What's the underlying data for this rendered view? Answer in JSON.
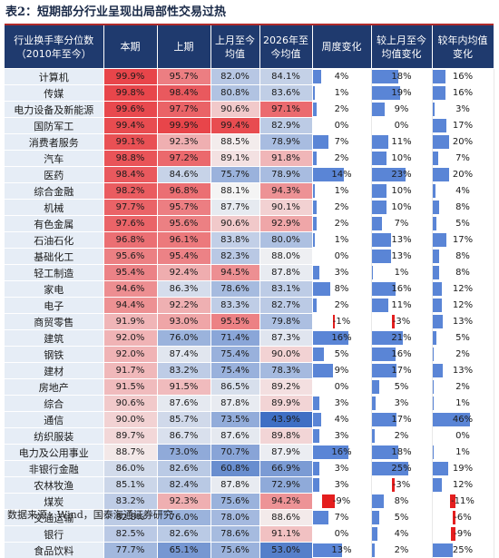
{
  "title": "表2：短期部分行业呈现出局部性交易过热",
  "source": "数据来源：Wind，国泰海通证券研究",
  "headers": [
    "行业换手率分位数（2010年至今）",
    "本期",
    "上期",
    "上月至今均值",
    "2026年至今均值",
    "周度变化",
    "较上月至今均值变化",
    "较年内均值变化"
  ],
  "colors": {
    "high": "#e8454a",
    "low": "#3f6fc4",
    "mid": "#f4f4f4",
    "pos_bar": "#5a85d6",
    "neg_bar": "#e41e1e"
  },
  "rows": [
    {
      "name": "计算机",
      "cur": "99.9%",
      "prev": "95.7%",
      "mon": "82.0%",
      "ytd": "84.1%",
      "wk": "4%",
      "vm": "18%",
      "vy": "16%"
    },
    {
      "name": "传媒",
      "cur": "99.8%",
      "prev": "98.4%",
      "mon": "80.8%",
      "ytd": "83.6%",
      "wk": "1%",
      "vm": "19%",
      "vy": "16%"
    },
    {
      "name": "电力设备及新能源",
      "cur": "99.6%",
      "prev": "97.7%",
      "mon": "90.6%",
      "ytd": "97.1%",
      "wk": "2%",
      "vm": "9%",
      "vy": "3%"
    },
    {
      "name": "国防军工",
      "cur": "99.4%",
      "prev": "99.9%",
      "mon": "99.4%",
      "ytd": "82.9%",
      "wk": "0%",
      "vm": "0%",
      "vy": "17%"
    },
    {
      "name": "消费者服务",
      "cur": "99.1%",
      "prev": "92.3%",
      "mon": "88.5%",
      "ytd": "78.9%",
      "wk": "7%",
      "vm": "11%",
      "vy": "20%"
    },
    {
      "name": "汽车",
      "cur": "98.8%",
      "prev": "97.2%",
      "mon": "89.1%",
      "ytd": "91.8%",
      "wk": "2%",
      "vm": "10%",
      "vy": "7%"
    },
    {
      "name": "医药",
      "cur": "98.4%",
      "prev": "84.6%",
      "mon": "75.7%",
      "ytd": "78.9%",
      "wk": "14%",
      "vm": "23%",
      "vy": "20%"
    },
    {
      "name": "综合金融",
      "cur": "98.2%",
      "prev": "96.8%",
      "mon": "88.1%",
      "ytd": "94.3%",
      "wk": "1%",
      "vm": "10%",
      "vy": "4%"
    },
    {
      "name": "机械",
      "cur": "97.7%",
      "prev": "95.7%",
      "mon": "87.7%",
      "ytd": "90.1%",
      "wk": "2%",
      "vm": "10%",
      "vy": "8%"
    },
    {
      "name": "有色金属",
      "cur": "97.6%",
      "prev": "95.6%",
      "mon": "90.6%",
      "ytd": "92.9%",
      "wk": "2%",
      "vm": "7%",
      "vy": "5%"
    },
    {
      "name": "石油石化",
      "cur": "96.8%",
      "prev": "96.1%",
      "mon": "83.8%",
      "ytd": "80.0%",
      "wk": "1%",
      "vm": "13%",
      "vy": "17%"
    },
    {
      "name": "基础化工",
      "cur": "95.6%",
      "prev": "95.4%",
      "mon": "82.3%",
      "ytd": "88.0%",
      "wk": "0%",
      "vm": "13%",
      "vy": "8%"
    },
    {
      "name": "轻工制造",
      "cur": "95.4%",
      "prev": "92.4%",
      "mon": "94.5%",
      "ytd": "87.8%",
      "wk": "3%",
      "vm": "1%",
      "vy": "8%"
    },
    {
      "name": "家电",
      "cur": "94.6%",
      "prev": "86.3%",
      "mon": "78.6%",
      "ytd": "83.1%",
      "wk": "8%",
      "vm": "16%",
      "vy": "12%"
    },
    {
      "name": "电子",
      "cur": "94.4%",
      "prev": "92.2%",
      "mon": "83.3%",
      "ytd": "82.7%",
      "wk": "2%",
      "vm": "11%",
      "vy": "12%"
    },
    {
      "name": "商贸零售",
      "cur": "91.9%",
      "prev": "93.0%",
      "mon": "95.5%",
      "ytd": "79.8%",
      "wk": "-1%",
      "vm": "-3%",
      "vy": "13%"
    },
    {
      "name": "建筑",
      "cur": "92.0%",
      "prev": "76.0%",
      "mon": "71.4%",
      "ytd": "87.3%",
      "wk": "16%",
      "vm": "21%",
      "vy": "5%"
    },
    {
      "name": "钢铁",
      "cur": "92.0%",
      "prev": "87.4%",
      "mon": "75.4%",
      "ytd": "90.0%",
      "wk": "5%",
      "vm": "16%",
      "vy": "2%"
    },
    {
      "name": "建材",
      "cur": "91.7%",
      "prev": "83.2%",
      "mon": "75.4%",
      "ytd": "78.3%",
      "wk": "9%",
      "vm": "17%",
      "vy": "13%"
    },
    {
      "name": "房地产",
      "cur": "91.5%",
      "prev": "91.5%",
      "mon": "86.5%",
      "ytd": "89.2%",
      "wk": "0%",
      "vm": "5%",
      "vy": "2%"
    },
    {
      "name": "综合",
      "cur": "90.6%",
      "prev": "87.6%",
      "mon": "87.8%",
      "ytd": "89.9%",
      "wk": "3%",
      "vm": "3%",
      "vy": "1%"
    },
    {
      "name": "通信",
      "cur": "90.0%",
      "prev": "85.7%",
      "mon": "73.5%",
      "ytd": "43.9%",
      "wk": "4%",
      "vm": "17%",
      "vy": "46%"
    },
    {
      "name": "纺织服装",
      "cur": "89.7%",
      "prev": "86.7%",
      "mon": "87.6%",
      "ytd": "89.8%",
      "wk": "3%",
      "vm": "2%",
      "vy": "0%"
    },
    {
      "name": "电力及公用事业",
      "cur": "88.7%",
      "prev": "73.0%",
      "mon": "70.7%",
      "ytd": "87.9%",
      "wk": "16%",
      "vm": "18%",
      "vy": "1%"
    },
    {
      "name": "非银行金融",
      "cur": "86.0%",
      "prev": "82.6%",
      "mon": "60.8%",
      "ytd": "66.9%",
      "wk": "3%",
      "vm": "25%",
      "vy": "19%"
    },
    {
      "name": "农林牧渔",
      "cur": "85.1%",
      "prev": "82.4%",
      "mon": "87.8%",
      "ytd": "72.9%",
      "wk": "3%",
      "vm": "-3%",
      "vy": "12%"
    },
    {
      "name": "煤炭",
      "cur": "83.2%",
      "prev": "92.3%",
      "mon": "75.6%",
      "ytd": "94.2%",
      "wk": "-9%",
      "vm": "8%",
      "vy": "-11%"
    },
    {
      "name": "交通运输",
      "cur": "82.8%",
      "prev": "76.0%",
      "mon": "78.0%",
      "ytd": "88.6%",
      "wk": "7%",
      "vm": "5%",
      "vy": "-6%"
    },
    {
      "name": "银行",
      "cur": "82.5%",
      "prev": "82.6%",
      "mon": "78.6%",
      "ytd": "91.1%",
      "wk": "0%",
      "vm": "4%",
      "vy": "-9%"
    },
    {
      "name": "食品饮料",
      "cur": "77.7%",
      "prev": "65.1%",
      "mon": "75.6%",
      "ytd": "53.0%",
      "wk": "13%",
      "vm": "2%",
      "vy": "25%"
    }
  ]
}
